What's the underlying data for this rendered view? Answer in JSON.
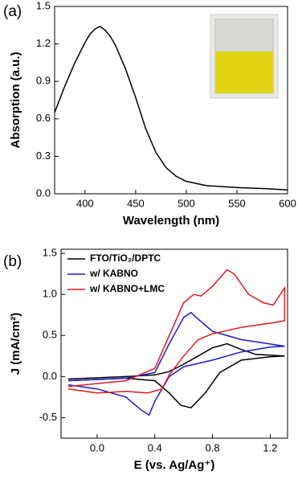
{
  "chart_data": [
    {
      "type": "line",
      "panel_label": "(a)",
      "x_label": "Wavelength (nm)",
      "y_label": "Absorption (a.u.)",
      "color": "#000000",
      "x": [
        370,
        380,
        390,
        400,
        405,
        410,
        415,
        420,
        425,
        430,
        440,
        450,
        460,
        470,
        480,
        490,
        500,
        520,
        550,
        580,
        600
      ],
      "values": [
        0.65,
        0.86,
        1.05,
        1.21,
        1.28,
        1.32,
        1.34,
        1.31,
        1.26,
        1.19,
        1.0,
        0.77,
        0.52,
        0.33,
        0.21,
        0.14,
        0.1,
        0.065,
        0.05,
        0.04,
        0.03
      ],
      "xlim": [
        370,
        600
      ],
      "xticks": [
        400,
        450,
        500,
        550,
        600
      ],
      "ylim": [
        0,
        1.5
      ],
      "yticks": [
        {
          "value": 0,
          "label": "0.0"
        },
        0.3,
        0.6,
        0.9,
        1.2,
        1.5
      ]
    },
    {
      "type": "line",
      "panel_label": "(b)",
      "x_label": "E (vs. Ag/Ag⁺)",
      "y_label": "J (mA/cm²)",
      "legend": "upper left",
      "xlim": [
        -0.25,
        1.32
      ],
      "xticks": [
        {
          "value": 0,
          "label": "0.0"
        },
        0.4,
        0.8,
        1.2
      ],
      "ylim": [
        -0.75,
        1.55
      ],
      "yticks": [
        -0.5,
        {
          "value": 0,
          "label": "0.0"
        },
        0.5,
        {
          "value": 1,
          "label": "1.0"
        },
        1.5
      ],
      "series": [
        {
          "name": "FTO/TiO₂/DPTC",
          "color": "#000000",
          "x": [
            -0.2,
            0.2,
            0.4,
            0.5,
            0.6,
            0.7,
            0.8,
            0.9,
            1.0,
            1.1,
            1.3,
            1.2,
            1.0,
            0.85,
            0.75,
            0.65,
            0.58,
            0.5,
            0.4,
            0.2,
            -0.2
          ],
          "values": [
            -0.03,
            0.0,
            0.02,
            0.06,
            0.15,
            0.25,
            0.35,
            0.4,
            0.33,
            0.27,
            0.25,
            0.24,
            0.2,
            0.05,
            -0.2,
            -0.38,
            -0.35,
            -0.2,
            -0.05,
            -0.02,
            -0.05
          ]
        },
        {
          "name": "w/ KABNO",
          "color": "#1a1ad6",
          "x": [
            -0.2,
            0.2,
            0.4,
            0.5,
            0.6,
            0.65,
            0.7,
            0.8,
            1.0,
            1.3,
            1.2,
            1.0,
            0.8,
            0.6,
            0.5,
            0.4,
            0.36,
            0.3,
            0.2,
            0.0,
            -0.2
          ],
          "values": [
            -0.05,
            -0.02,
            0.05,
            0.4,
            0.72,
            0.78,
            0.7,
            0.55,
            0.45,
            0.37,
            0.36,
            0.3,
            0.2,
            0.12,
            0.0,
            -0.3,
            -0.47,
            -0.4,
            -0.25,
            -0.15,
            -0.1
          ]
        },
        {
          "name": "w/ KABNO+LMC",
          "color": "#e01b1b",
          "x": [
            -0.2,
            0.2,
            0.4,
            0.5,
            0.6,
            0.67,
            0.72,
            0.8,
            0.9,
            0.95,
            1.05,
            1.15,
            1.22,
            1.3,
            1.3,
            1.2,
            1.0,
            0.8,
            0.7,
            0.6,
            0.5,
            0.45,
            0.35,
            0.2,
            0.0,
            -0.2
          ],
          "values": [
            -0.12,
            -0.05,
            0.1,
            0.5,
            0.9,
            1.0,
            0.98,
            1.1,
            1.3,
            1.25,
            1.0,
            0.9,
            0.87,
            1.08,
            0.68,
            0.65,
            0.6,
            0.52,
            0.45,
            0.25,
            0.02,
            -0.15,
            -0.2,
            -0.18,
            -0.2,
            -0.15
          ]
        }
      ]
    }
  ]
}
